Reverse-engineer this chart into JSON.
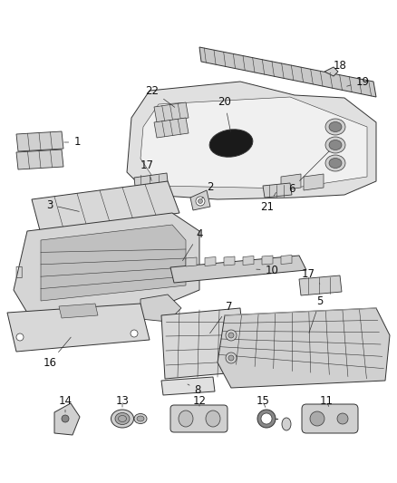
{
  "bg_color": "#ffffff",
  "figsize": [
    4.38,
    5.33
  ],
  "dpi": 100,
  "text_color": "#111111",
  "line_color": "#333333",
  "fill_light": "#e8e8e8",
  "fill_mid": "#d0d0d0",
  "fill_dark": "#aaaaaa",
  "font_size": 8.5,
  "lw_main": 0.7,
  "lw_thin": 0.4
}
